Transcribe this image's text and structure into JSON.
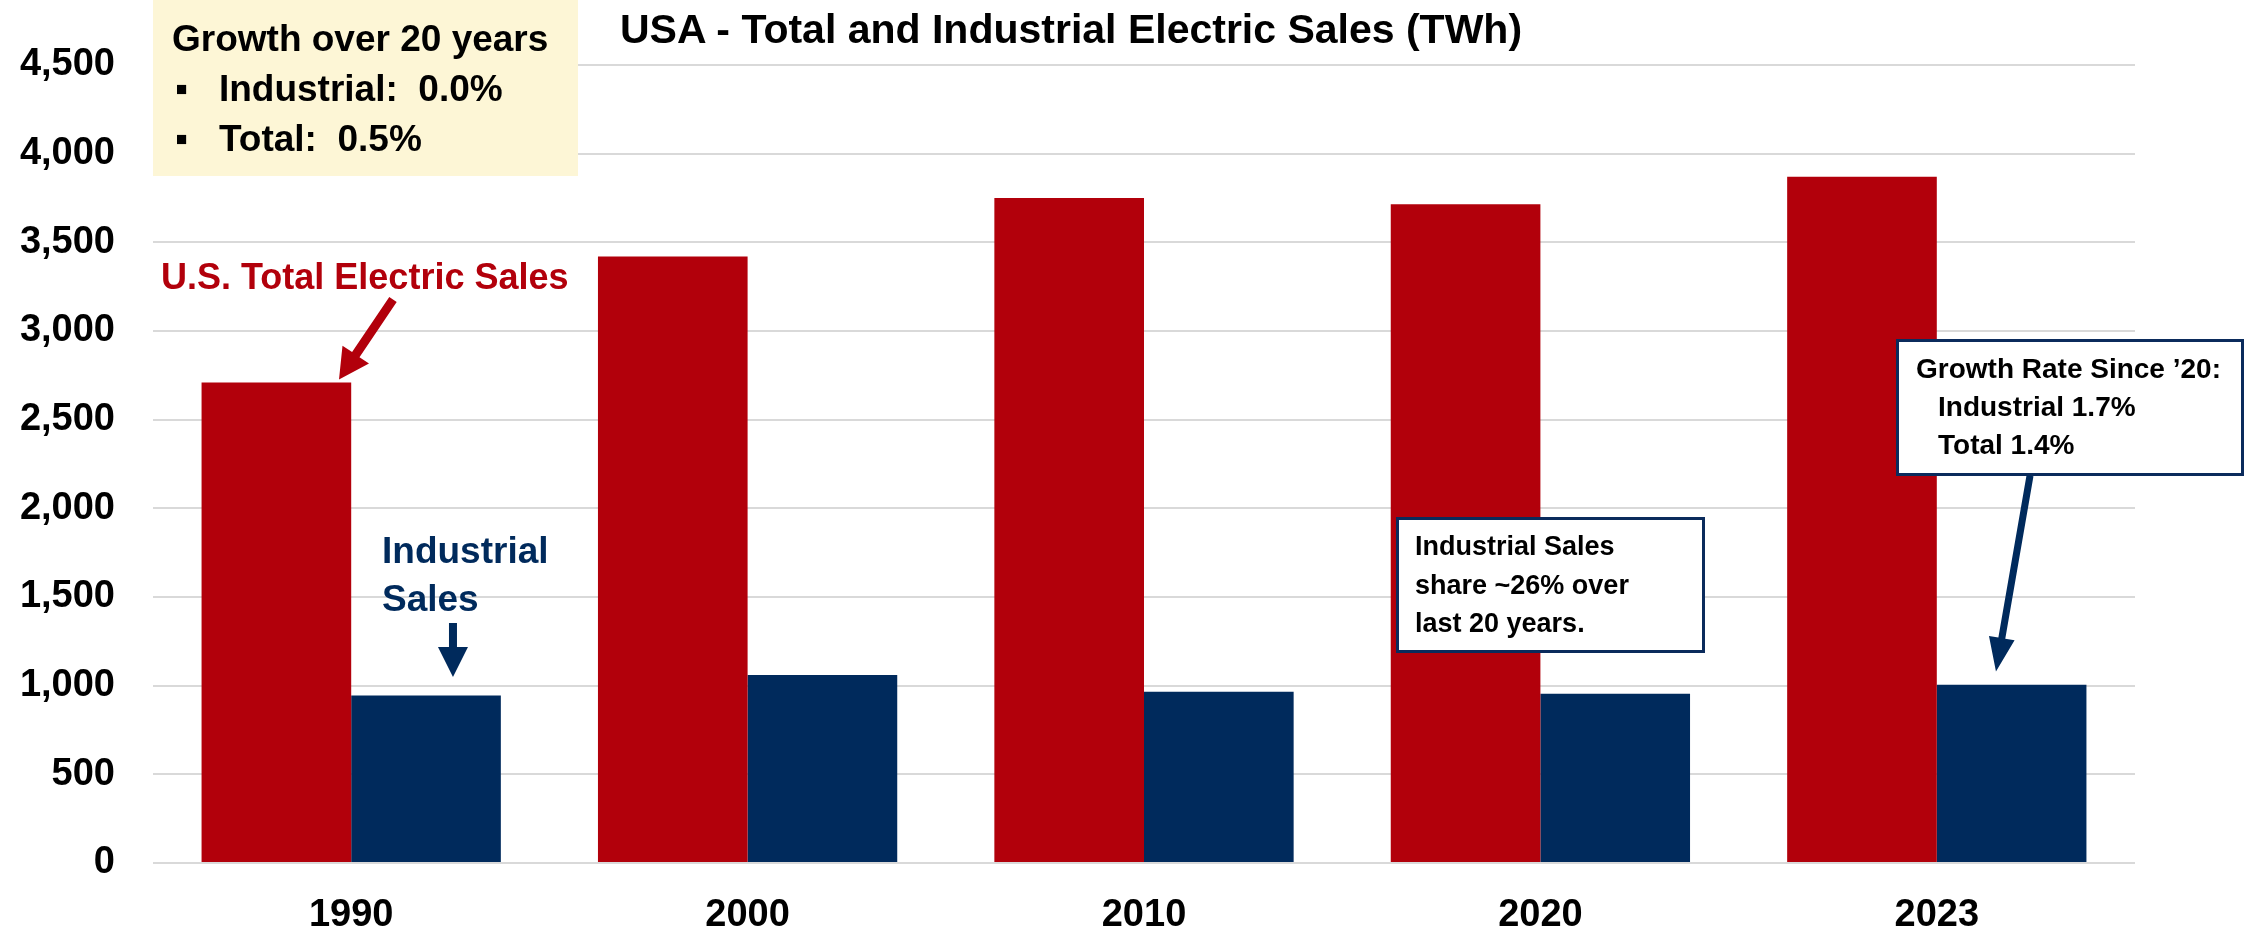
{
  "chart_data": {
    "type": "bar",
    "title": "USA - Total and Industrial Electric Sales (TWh)",
    "categories": [
      "1990",
      "2000",
      "2010",
      "2020",
      "2023"
    ],
    "series": [
      {
        "name": "U.S. Total Electric Sales",
        "color": "#b2000b",
        "values": [
          2710,
          3420,
          3750,
          3715,
          3870
        ]
      },
      {
        "name": "Industrial Sales",
        "color": "#002a5c",
        "values": [
          945,
          1060,
          965,
          955,
          1005
        ]
      }
    ],
    "ylim": [
      0,
      4500
    ],
    "yticks": [
      0,
      500,
      {
        "value": 1000,
        "label": "1,000"
      },
      {
        "value": 1500,
        "label": "1,500"
      },
      {
        "value": 2000,
        "label": "2,000"
      },
      {
        "value": 2500,
        "label": "2,500"
      },
      {
        "value": 3000,
        "label": "3,000"
      },
      {
        "value": 3500,
        "label": "3,500"
      },
      {
        "value": 4000,
        "label": "4,000"
      },
      {
        "value": 4500,
        "label": "4,500"
      }
    ],
    "grid": "y",
    "annotations": [
      "Growth over 20 years\n▪   Industrial:  0.0%\n▪   Total:  0.5%",
      "Industrial Sales\nshare ~26% over\nlast 20 years.",
      "Growth Rate Since ’20:\nIndustrial 1.7%\nTotal 1.4%"
    ]
  }
}
